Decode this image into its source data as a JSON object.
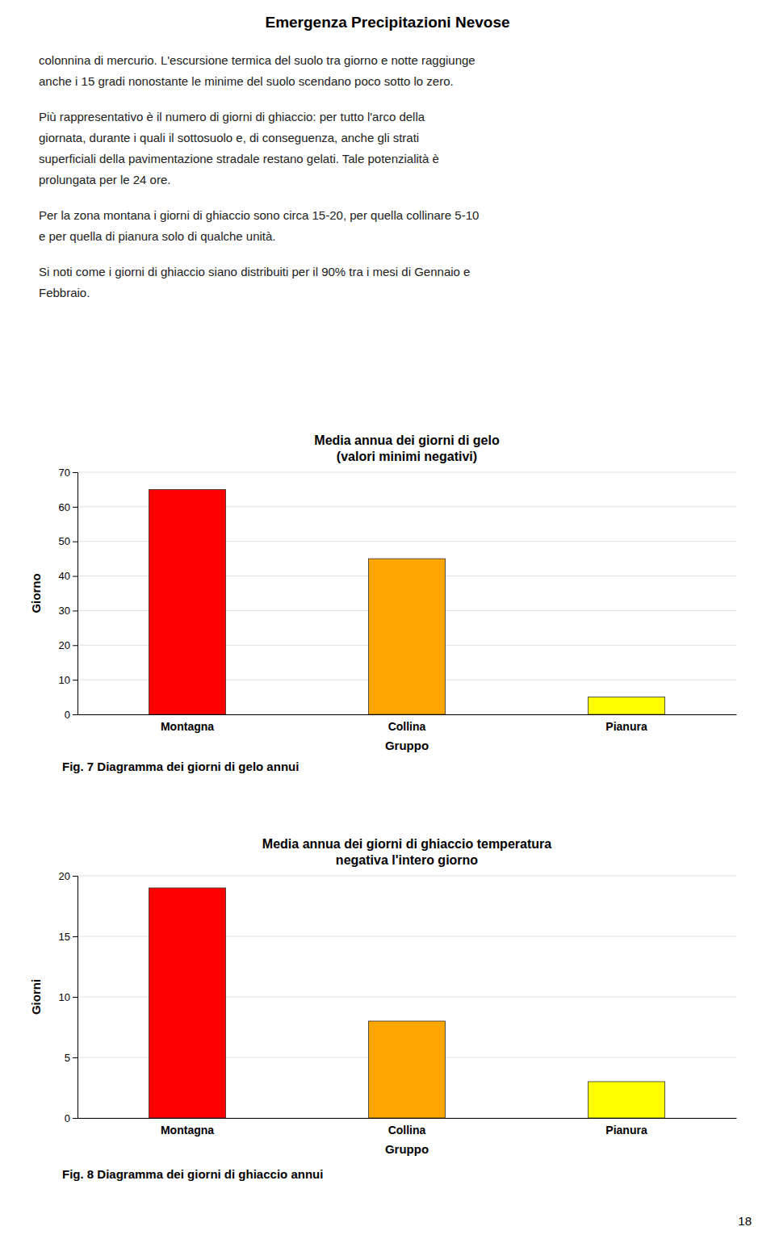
{
  "title": "Emergenza Precipitazioni Nevose",
  "annotations": [
    [
      "colonnina di mercurio. L'escursione termica del suolo tra giorno e notte raggiunge",
      "anche i 15 gradi nonostante le minime del suolo scendano poco sotto lo zero."
    ],
    [
      "Più rappresentativo è il numero di giorni di ghiaccio: per tutto l'arco della",
      "giornata, durante i quali il sottosuolo e, di conseguenza, anche gli strati",
      "superficiali della pavimentazione stradale restano gelati. Tale potenzialità è",
      "prolungata per le 24 ore."
    ],
    [
      "Per la zona montana i giorni di ghiaccio sono circa 15-20, per quella collinare 5-10",
      "e per quella di pianura solo di qualche unità."
    ],
    [
      "Si noti come i giorni di ghiaccio siano distribuiti per il 90% tra i mesi di Gennaio e",
      "Febbraio."
    ]
  ],
  "page_number": "18",
  "chart_data": [
    {
      "type": "bar",
      "title": "Media annua dei giorni di gelo\n(valori minimi negativi)",
      "x_label": "Gruppo",
      "y_label": "Giorno",
      "categories": [
        "Montagna",
        "Collina",
        "Pianura"
      ],
      "values": [
        65,
        45,
        5
      ],
      "colors": [
        "#ff0000",
        "#ffa500",
        "#ffff00"
      ],
      "ylim": [
        0,
        70
      ],
      "yticks": [
        0,
        10,
        20,
        30,
        40,
        50,
        60,
        70
      ],
      "grid": true,
      "caption": "Fig. 7 Diagramma dei giorni di gelo annui"
    },
    {
      "type": "bar",
      "title": "Media annua dei giorni di ghiaccio temperatura\nnegativa l'intero giorno",
      "x_label": "Gruppo",
      "y_label": "Giorni",
      "categories": [
        "Montagna",
        "Collina",
        "Pianura"
      ],
      "values": [
        19,
        8,
        3
      ],
      "colors": [
        "#ff0000",
        "#ffa500",
        "#ffff00"
      ],
      "ylim": [
        0,
        20
      ],
      "yticks": [
        0,
        5,
        10,
        15,
        20
      ],
      "grid": true,
      "caption": "Fig. 8 Diagramma dei giorni di ghiaccio annui"
    }
  ]
}
